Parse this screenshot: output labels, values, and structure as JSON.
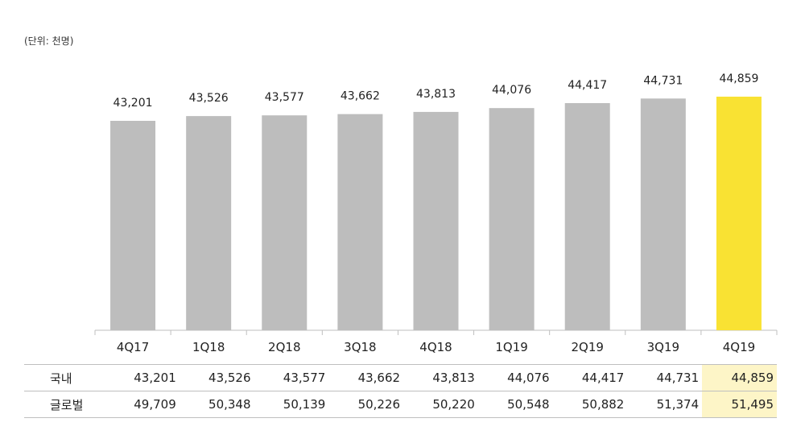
{
  "unit_label": "(단위: 천명)",
  "highlight_color": "#f9e233",
  "bar_color": "#bdbdbd",
  "chart_data": {
    "type": "bar",
    "title": "",
    "xlabel": "",
    "ylabel": "",
    "categories": [
      "4Q17",
      "1Q18",
      "2Q18",
      "3Q18",
      "4Q18",
      "1Q19",
      "2Q19",
      "3Q19",
      "4Q19"
    ],
    "values": [
      43201,
      43526,
      43577,
      43662,
      43813,
      44076,
      44417,
      44731,
      44859
    ],
    "value_labels": [
      "43,201",
      "43,526",
      "43,577",
      "43,662",
      "43,813",
      "44,076",
      "44,417",
      "44,731",
      "44,859"
    ],
    "highlight_index": 8,
    "ylim": [
      0,
      46000
    ]
  },
  "table": {
    "rows": [
      {
        "label": "국내",
        "values": [
          "43,201",
          "43,526",
          "43,577",
          "43,662",
          "43,813",
          "44,076",
          "44,417",
          "44,731",
          "44,859"
        ]
      },
      {
        "label": "글로벌",
        "values": [
          "49,709",
          "50,348",
          "50,139",
          "50,226",
          "50,220",
          "50,548",
          "50,882",
          "51,374",
          "51,495"
        ]
      }
    ]
  }
}
